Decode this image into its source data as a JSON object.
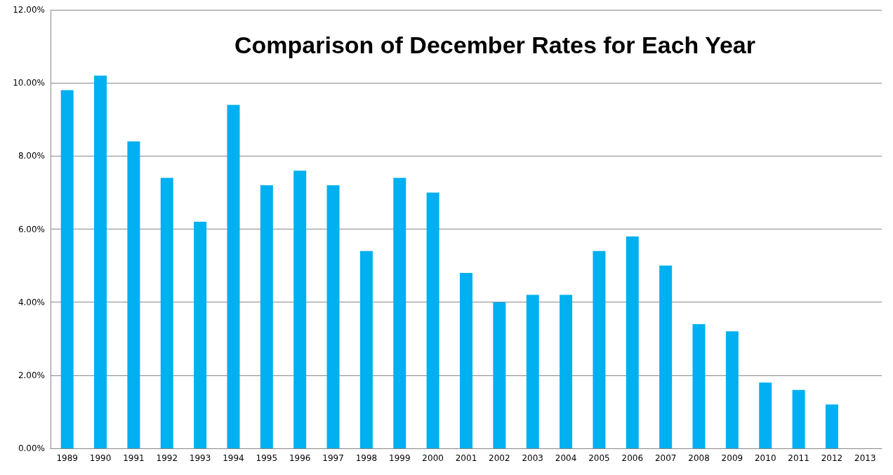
{
  "chart_data": {
    "type": "bar",
    "title": "Comparison of December Rates for Each Year",
    "categories": [
      "1989",
      "1990",
      "1991",
      "1992",
      "1993",
      "1994",
      "1995",
      "1996",
      "1997",
      "1998",
      "1999",
      "2000",
      "2001",
      "2002",
      "2003",
      "2004",
      "2005",
      "2006",
      "2007",
      "2008",
      "2009",
      "2010",
      "2011",
      "2012",
      "2013"
    ],
    "values": [
      9.8,
      10.2,
      8.4,
      7.4,
      6.2,
      9.4,
      7.2,
      7.6,
      7.2,
      5.4,
      7.4,
      7.0,
      4.8,
      4.0,
      4.2,
      4.2,
      5.4,
      5.8,
      5.0,
      3.4,
      3.2,
      1.8,
      1.6,
      1.2,
      null
    ],
    "color": "#00b0f0",
    "ylim": [
      0,
      12
    ],
    "yticks": [
      {
        "value": 0,
        "label": "0.00%"
      },
      {
        "value": 2,
        "label": "2.00%"
      },
      {
        "value": 4,
        "label": "4.00%"
      },
      {
        "value": 6,
        "label": "6.00%"
      },
      {
        "value": 8,
        "label": "8.00%"
      },
      {
        "value": 10,
        "label": "10.00%"
      },
      {
        "value": 12,
        "label": "12.00%"
      }
    ],
    "grid": "y"
  }
}
